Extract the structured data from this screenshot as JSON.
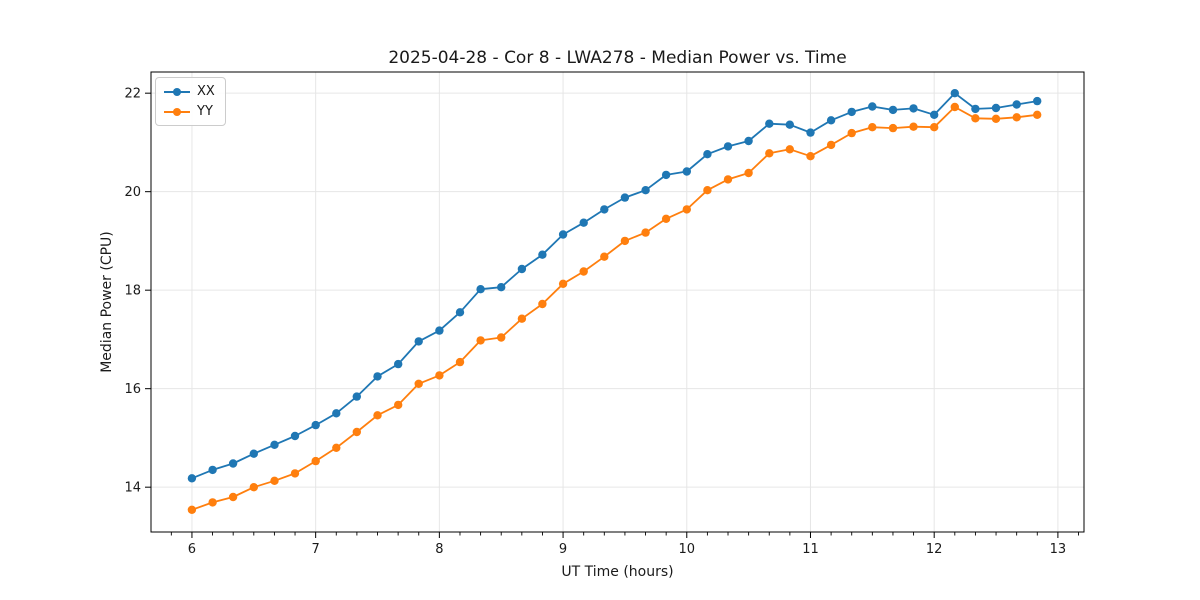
{
  "figure": {
    "title": "2025-04-28 - Cor 8 - LWA278 - Median Power vs. Time",
    "xlabel": "UT Time (hours)",
    "ylabel": "Median Power (CPU)",
    "background": "#ffffff"
  },
  "legend": {
    "items": [
      {
        "label": "XX",
        "color": "#1f77b4"
      },
      {
        "label": "YY",
        "color": "#ff7f0e"
      }
    ]
  },
  "chart_data": {
    "type": "line",
    "title": "2025-04-28 - Cor 8 - LWA278 - Median Power vs. Time",
    "xlabel": "UT Time (hours)",
    "ylabel": "Median Power (CPU)",
    "xlim": [
      5.669,
      13.211
    ],
    "ylim": [
      13.09,
      22.43
    ],
    "xticks": [
      6,
      7,
      8,
      9,
      10,
      11,
      12,
      13
    ],
    "yticks": [
      14,
      16,
      18,
      20,
      22
    ],
    "x_minor_interval": 0.1667,
    "grid": true,
    "grid_color": "#e6e6e6",
    "frame_color": "#000000",
    "legend_position": "upper-left",
    "x": [
      6.0,
      6.167,
      6.333,
      6.5,
      6.667,
      6.833,
      7.0,
      7.167,
      7.333,
      7.5,
      7.667,
      7.833,
      8.0,
      8.167,
      8.333,
      8.5,
      8.667,
      8.833,
      9.0,
      9.167,
      9.333,
      9.5,
      9.667,
      9.833,
      10.0,
      10.167,
      10.333,
      10.5,
      10.667,
      10.833,
      11.0,
      11.167,
      11.333,
      11.5,
      11.667,
      11.833,
      12.0,
      12.167,
      12.333,
      12.5,
      12.667,
      12.833
    ],
    "series": [
      {
        "name": "XX",
        "color": "#1f77b4",
        "marker": "circle",
        "values": [
          14.18,
          14.35,
          14.48,
          14.68,
          14.86,
          15.04,
          15.26,
          15.5,
          15.84,
          16.25,
          16.5,
          16.96,
          17.18,
          17.55,
          18.02,
          18.06,
          18.43,
          18.72,
          19.13,
          19.37,
          19.64,
          19.88,
          20.03,
          20.34,
          20.41,
          20.76,
          20.92,
          21.03,
          21.38,
          21.36,
          21.2,
          21.45,
          21.62,
          21.73,
          21.66,
          21.69,
          21.56,
          22.0,
          21.68,
          21.7,
          21.77,
          21.84
        ]
      },
      {
        "name": "YY",
        "color": "#ff7f0e",
        "marker": "circle",
        "values": [
          13.54,
          13.69,
          13.8,
          14.0,
          14.13,
          14.28,
          14.53,
          14.8,
          15.12,
          15.46,
          15.67,
          16.1,
          16.27,
          16.54,
          16.98,
          17.04,
          17.42,
          17.72,
          18.13,
          18.38,
          18.68,
          19.0,
          19.17,
          19.45,
          19.64,
          20.03,
          20.25,
          20.38,
          20.78,
          20.86,
          20.72,
          20.95,
          21.19,
          21.31,
          21.29,
          21.32,
          21.31,
          21.72,
          21.49,
          21.48,
          21.51,
          21.56
        ]
      }
    ]
  }
}
